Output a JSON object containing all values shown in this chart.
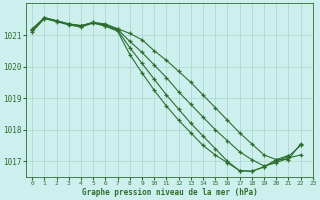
{
  "title": "Graphe pression niveau de la mer (hPa)",
  "xlabel": "Graphe pression niveau de la mer (hPa)",
  "background_color": "#cdf0ee",
  "grid_color": "#b0d8d0",
  "line_color": "#2d6e2d",
  "ylim": [
    1016.5,
    1022.0
  ],
  "xlim": [
    -0.5,
    23
  ],
  "yticks": [
    1017,
    1018,
    1019,
    1020,
    1021
  ],
  "xticks": [
    0,
    1,
    2,
    3,
    4,
    5,
    6,
    7,
    8,
    9,
    10,
    11,
    12,
    13,
    14,
    15,
    16,
    17,
    18,
    19,
    20,
    21,
    22,
    23
  ],
  "series": [
    [
      1021.2,
      1021.55,
      1021.45,
      1021.35,
      1021.3,
      1021.4,
      1021.35,
      1021.2,
      1021.05,
      1020.85,
      1020.5,
      1020.2,
      1019.85,
      1019.5,
      1019.1,
      1018.7,
      1018.3,
      1017.9,
      1017.55,
      1017.2,
      1017.05,
      1017.05,
      1017.55,
      null
    ],
    [
      1021.15,
      1021.55,
      1021.45,
      1021.35,
      1021.3,
      1021.38,
      1021.3,
      1021.15,
      1020.6,
      1020.1,
      1019.6,
      1019.1,
      1018.65,
      1018.2,
      1017.8,
      1017.4,
      1017.0,
      1016.7,
      1016.68,
      1016.82,
      1017.05,
      1017.18,
      null,
      null
    ],
    [
      1021.15,
      1021.55,
      1021.45,
      1021.35,
      1021.28,
      1021.4,
      1021.32,
      1021.18,
      1020.8,
      1020.45,
      1020.05,
      1019.65,
      1019.2,
      1018.8,
      1018.4,
      1018.0,
      1017.65,
      1017.3,
      1017.05,
      1016.85,
      1016.95,
      1017.1,
      1017.2,
      null
    ],
    [
      1021.1,
      1021.52,
      1021.42,
      1021.32,
      1021.25,
      1021.38,
      1021.28,
      1021.12,
      1020.38,
      1019.8,
      1019.25,
      1018.75,
      1018.3,
      1017.9,
      1017.5,
      1017.2,
      1016.95,
      1016.7,
      1016.68,
      1016.82,
      1017.0,
      1017.15,
      1017.5,
      null
    ]
  ]
}
